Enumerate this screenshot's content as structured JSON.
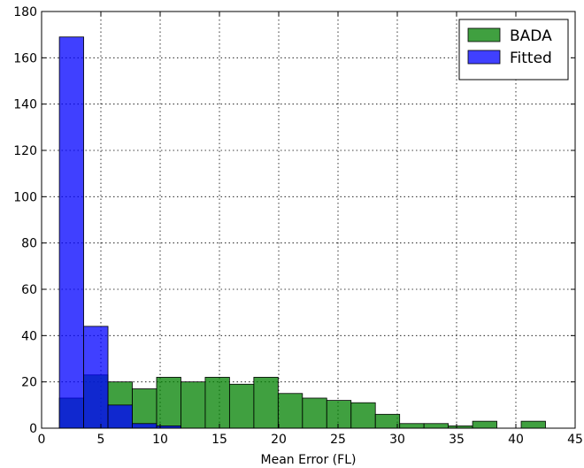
{
  "chart_data": {
    "type": "bar",
    "title": "",
    "xlabel": "Mean Error (FL)",
    "ylabel": "",
    "xlim": [
      0,
      45
    ],
    "ylim": [
      0,
      180
    ],
    "xticks": [
      0,
      5,
      10,
      15,
      20,
      25,
      30,
      35,
      40,
      45
    ],
    "yticks": [
      0,
      20,
      40,
      60,
      80,
      100,
      120,
      140,
      160,
      180
    ],
    "grid": true,
    "legend_position": "top-right",
    "bin_width": 2.05,
    "series": [
      {
        "name": "BADA",
        "color": "#008000",
        "opacity": 0.75,
        "bin_starts": [
          1.5,
          3.55,
          5.6,
          7.65,
          9.7,
          11.75,
          13.8,
          15.85,
          17.9,
          19.95,
          22.0,
          24.05,
          26.1,
          28.15,
          30.2,
          32.25,
          34.3,
          36.35,
          38.4,
          40.45
        ],
        "values": [
          13,
          23,
          20,
          17,
          22,
          20,
          22,
          19,
          22,
          15,
          13,
          12,
          11,
          6,
          2,
          2,
          1,
          3,
          0,
          3
        ]
      },
      {
        "name": "Fitted",
        "color": "#0000ff",
        "opacity": 0.75,
        "bin_starts": [
          1.5,
          3.55,
          5.6,
          7.65,
          9.7
        ],
        "values": [
          169,
          44,
          10,
          2,
          1
        ]
      }
    ]
  }
}
